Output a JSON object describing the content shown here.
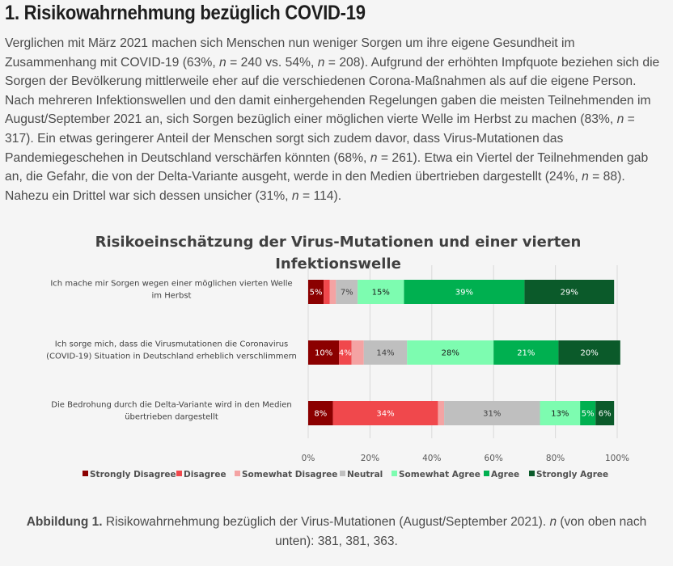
{
  "heading": "1. Risikowahrnehmung bezüglich COVID-19",
  "intro": [
    {
      "t": "Verglichen mit März 2021 machen sich Menschen nun weniger Sorgen um ihre eigene Gesundheit im Zusammenhang mit COVID-19 (63%, "
    },
    {
      "t": "n",
      "i": true
    },
    {
      "t": " = 240 vs. 54%, "
    },
    {
      "t": "n",
      "i": true
    },
    {
      "t": " = 208). Aufgrund der erhöhten Impfquote beziehen sich die Sorgen der Bevölkerung mittlerweile eher auf die verschiedenen Corona-Maßnahmen als auf die eigene Person. Nach mehreren Infektionswellen und den damit einhergehenden Regelungen gaben die meisten Teilnehmenden im August/September 2021 an, sich Sorgen bezüglich einer möglichen vierte Welle im Herbst zu machen (83%, "
    },
    {
      "t": "n",
      "i": true
    },
    {
      "t": " = 317). Ein etwas geringerer Anteil der Menschen sorgt sich zudem davor, dass Virus-Mutationen das Pandemiegeschehen in Deutschland verschärfen könnten (68%, "
    },
    {
      "t": "n",
      "i": true
    },
    {
      "t": " = 261). Etwa ein Viertel der Teilnehmenden gab an, die Gefahr, die von der Delta-Variante ausgeht, werde in den Medien übertrieben dargestellt (24%, "
    },
    {
      "t": "n",
      "i": true
    },
    {
      "t": " = 88). Nahezu ein Drittel war sich dessen unsicher (31%, "
    },
    {
      "t": "n",
      "i": true
    },
    {
      "t": " = 114)."
    }
  ],
  "chart_data": {
    "type": "bar",
    "orientation": "horizontal",
    "stacked": true,
    "title_lines": [
      "Risikoeinschätzung der Virus-Mutationen und einer vierten",
      "Infektionswelle"
    ],
    "xlim": [
      0,
      100
    ],
    "x_ticks": [
      "0%",
      "20%",
      "40%",
      "60%",
      "80%",
      "100%"
    ],
    "grid": true,
    "legend_position": "bottom",
    "categories": [
      [
        "Ich mache mir Sorgen wegen einer möglichen vierten Welle",
        "im Herbst"
      ],
      [
        "Ich sorge mich, dass die Virusmutationen die Coronavirus",
        "(COVID-19) Situation in Deutschland erheblich verschlimmern"
      ],
      [
        "Die Bedrohung durch die Delta-Variante wird in den Medien",
        "übertrieben dargestellt"
      ]
    ],
    "series": [
      {
        "name": "Strongly Disagree",
        "color": "#8b0000",
        "label_color": "#ffffff",
        "values": [
          5,
          10,
          8
        ],
        "labels": [
          "5%",
          "10%",
          "8%"
        ]
      },
      {
        "name": "Disagree",
        "color": "#f0484c",
        "label_color": "#ffffff",
        "values": [
          2,
          4,
          34
        ],
        "labels": [
          "",
          "4%",
          "34%"
        ]
      },
      {
        "name": "Somewhat Disagree",
        "color": "#f4a3a3",
        "label_color": "#404040",
        "values": [
          2,
          4,
          2
        ],
        "labels": [
          "",
          "",
          ""
        ]
      },
      {
        "name": "Neutral",
        "color": "#bfbfbf",
        "label_color": "#404040",
        "values": [
          7,
          14,
          31
        ],
        "labels": [
          "7%",
          "14%",
          "31%"
        ]
      },
      {
        "name": "Somewhat Agree",
        "color": "#7dfcb0",
        "label_color": "#1a1a1a",
        "values": [
          15,
          28,
          13
        ],
        "labels": [
          "15%",
          "28%",
          "13%"
        ]
      },
      {
        "name": "Agree",
        "color": "#00b050",
        "label_color": "#ffffff",
        "values": [
          39,
          21,
          5
        ],
        "labels": [
          "39%",
          "21%",
          "5%"
        ]
      },
      {
        "name": "Strongly Agree",
        "color": "#0b5a2a",
        "label_color": "#ffffff",
        "values": [
          29,
          20,
          6
        ],
        "labels": [
          "29%",
          "20%",
          "6%"
        ]
      }
    ]
  },
  "caption": [
    {
      "t": "Abbildung 1.",
      "b": true
    },
    {
      "t": " Risikowahrnehmung bezüglich der Virus-Mutationen (August/September 2021). "
    },
    {
      "t": "n",
      "i": true
    },
    {
      "t": " (von oben nach unten): 381, 381, 363."
    }
  ]
}
